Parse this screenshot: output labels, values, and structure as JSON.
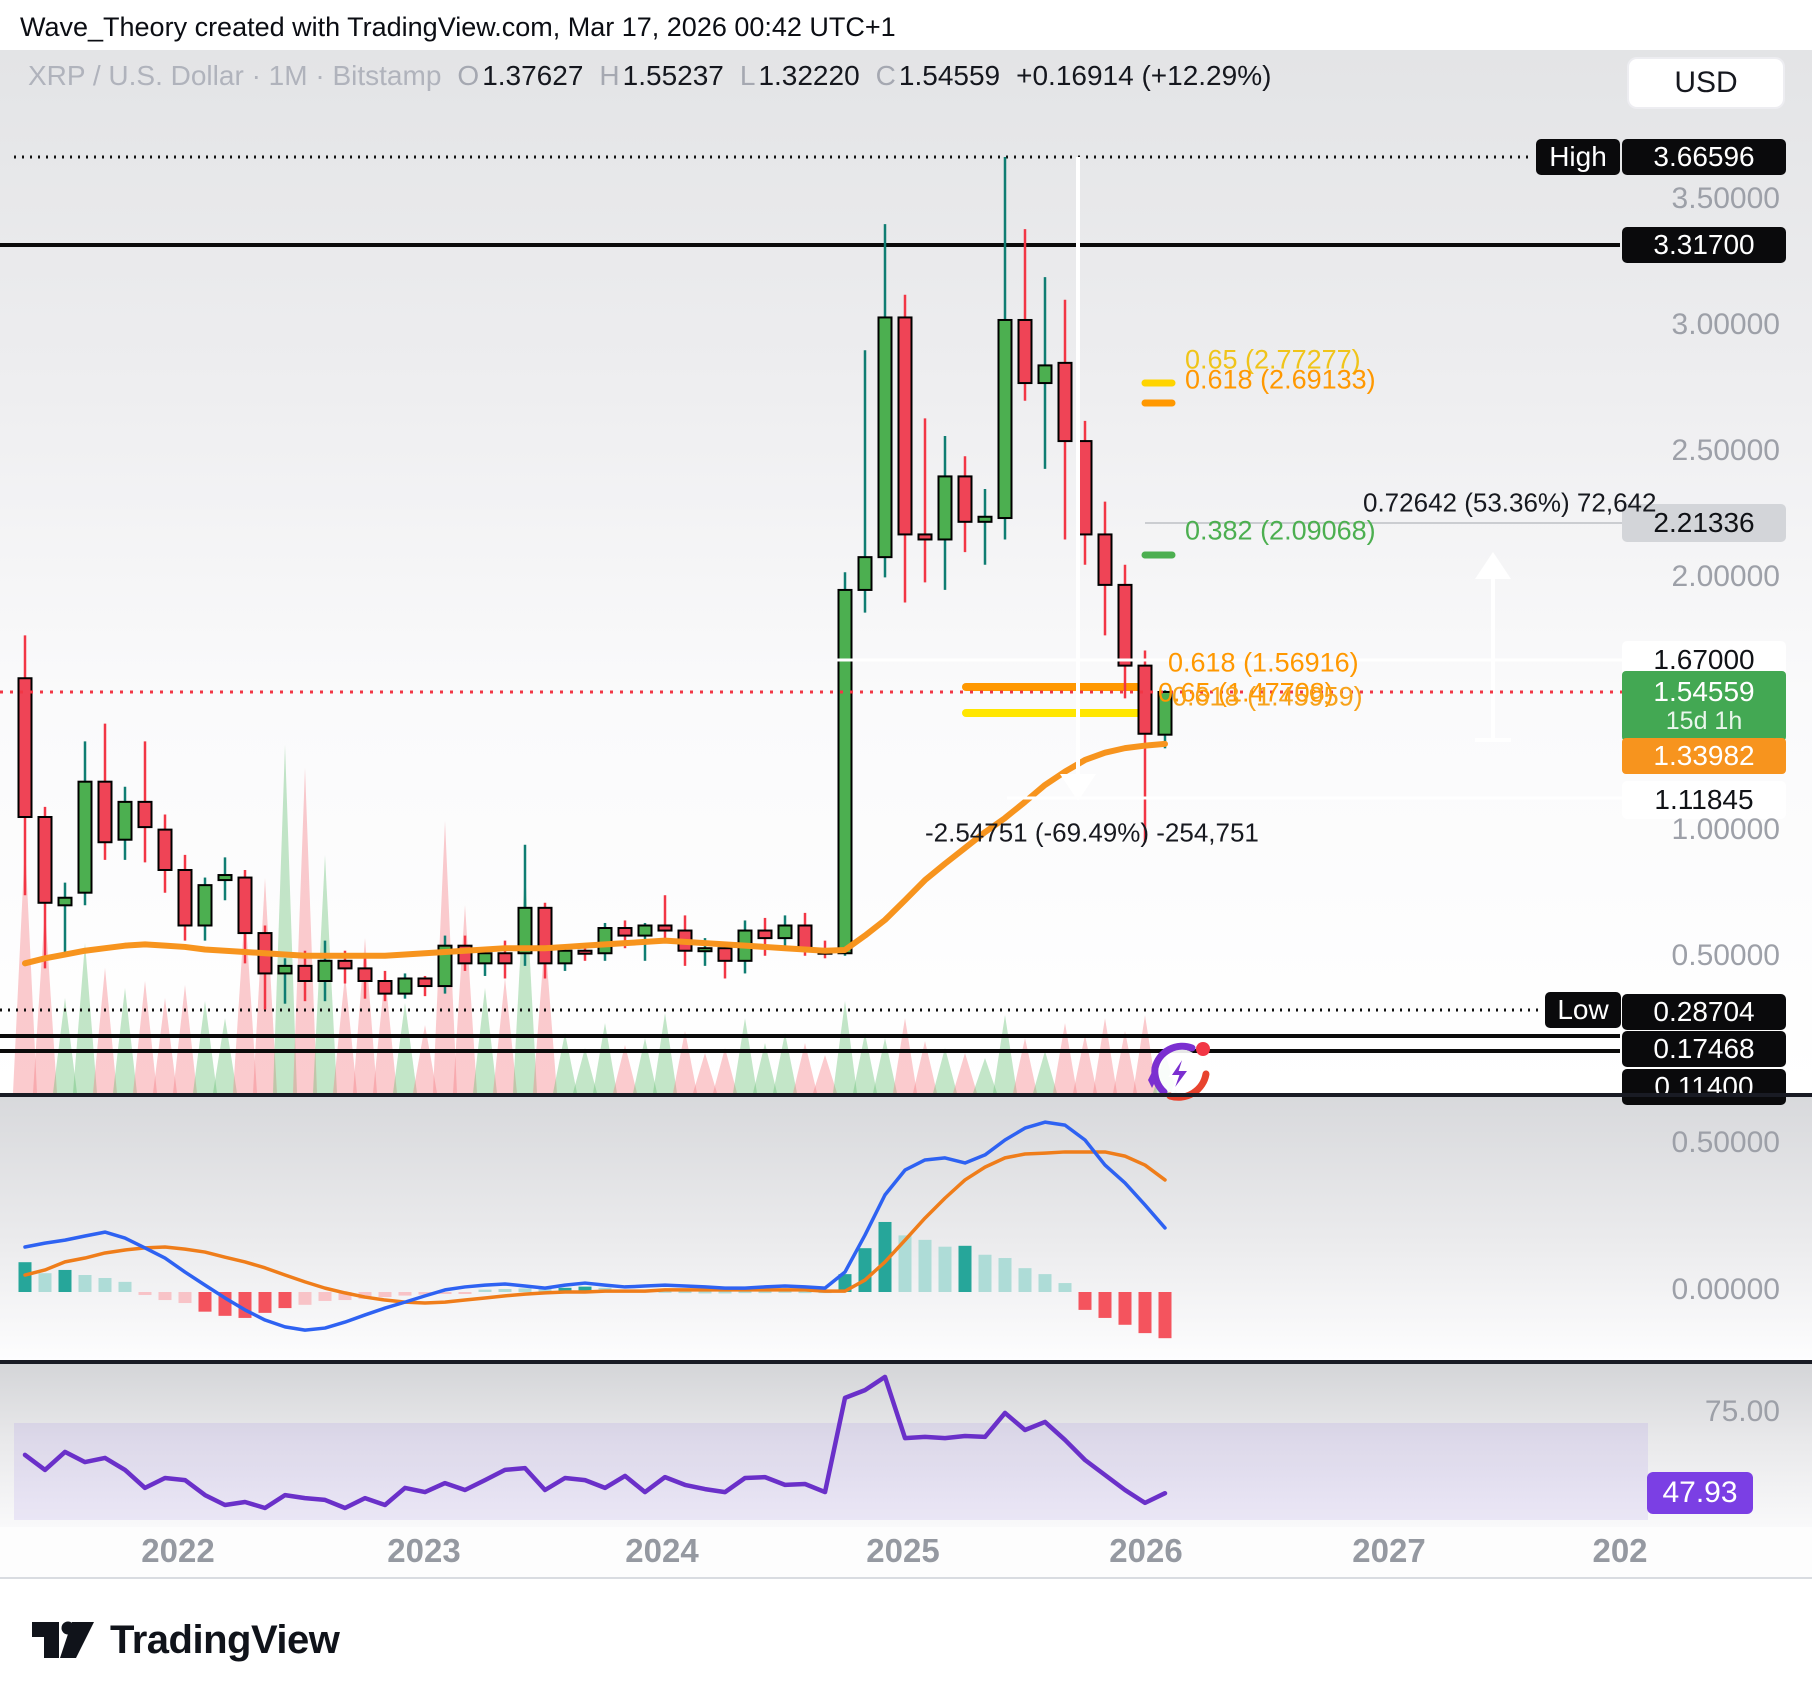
{
  "attribution": "Wave_Theory created with TradingView.com, Mar 17, 2026 00:42 UTC+1",
  "legend": {
    "symbol": "XRP / U.S. Dollar",
    "separator": "·",
    "interval": "1M",
    "exchange": "Bitstamp",
    "open_label": "O",
    "open": "1.37627",
    "high_label": "H",
    "high": "1.55237",
    "low_label": "L",
    "low": "1.32220",
    "close_label": "C",
    "close": "1.54559",
    "change": "+0.16914 (+12.29%)"
  },
  "price_axis": {
    "currency": "USD",
    "gray_labels": [
      "3.50000",
      "3.00000",
      "2.50000",
      "2.00000",
      "1.00000",
      "0.50000"
    ],
    "high_label": "High",
    "high_value": "3.66596",
    "level_33170": "3.31700",
    "level_221336": "2.21336",
    "level_167000": "1.67000",
    "last_price": "1.54559",
    "countdown": "15d 1h",
    "ma_value": "1.33982",
    "level_111845": "1.11845",
    "low_label": "Low",
    "low_value": "0.28704",
    "level_017468": "0.17468",
    "level_011400": "0.11400"
  },
  "macd_axis": {
    "upper": "0.50000",
    "zero": "0.00000"
  },
  "rsi_axis": {
    "upper": "75.00",
    "current": "47.93"
  },
  "time_axis": {
    "labels": [
      "2022",
      "2023",
      "2024",
      "2025",
      "2026",
      "2027",
      "202"
    ]
  },
  "annotations": {
    "fib_upper": [
      {
        "text": "0.65 (2.77277)",
        "color": "#f0c419"
      },
      {
        "text": "0.618 (2.69133)",
        "color": "#ff9800"
      },
      {
        "text": "0.382 (2.09068)",
        "color": "#4caf50"
      }
    ],
    "fib_lower": [
      {
        "text": "0.618 (1.56916)"
      },
      {
        "text": "0.65 (1.47708)"
      },
      {
        "text": "0.618 (1.45959)"
      }
    ],
    "measure_up": "0.72642 (53.36%) 72,642",
    "measure_down": "-2.54751 (-69.49%) -254,751"
  },
  "footer": {
    "brand": "TradingView"
  },
  "colors": {
    "candle_up": "#4caf50",
    "candle_down": "#ef4456",
    "wick_up": "#0f7d72",
    "wick_down": "#f23645",
    "ma": "#f7941e",
    "macd_line": "#2e62f2",
    "signal_line": "#ef7d1a",
    "rsi_line": "#6a30c9",
    "hist_up_dark": "#26a69a",
    "hist_up_light": "#aedcd7",
    "hist_down_dark": "#f4545e",
    "hist_down_light": "#f8c3c7",
    "vol_up": "rgba(96,190,110,0.38)",
    "vol_down": "rgba(244,119,126,0.38)",
    "level_red": "#f23645",
    "fib_yellow": "#ffd400",
    "fib_orange": "#ff9800",
    "fib_green": "#4caf50",
    "drawing_white": "#ffffff",
    "measure_gray": "#cbcdd1"
  },
  "chart_data": {
    "type": "candlestick",
    "title": "XRP / U.S. Dollar · 1M · Bitstamp",
    "xlabel": "",
    "ylabel": "USD",
    "x_tick_labels": [
      "2022",
      "2023",
      "2024",
      "2025",
      "2026",
      "2027",
      "202"
    ],
    "price_range_visible": {
      "top": 3.72,
      "bottom": -0.05
    },
    "price_gridlines": [
      3.5,
      3.0,
      2.5,
      2.0,
      1.0,
      0.5
    ],
    "marked_levels": {
      "high": 3.66596,
      "black_line": 3.317,
      "range_top": 2.21336,
      "white_upper": 1.67,
      "last": 1.54559,
      "ma": 1.33982,
      "white_lower": 1.11845,
      "low": 0.28704,
      "black_low_1": 0.17468,
      "black_low_2": 0.114
    },
    "first_month": "2021-06",
    "last_month": "2026-03",
    "candles": [
      [
        1.6,
        1.77,
        0.74,
        1.05
      ],
      [
        1.05,
        1.09,
        0.45,
        0.71
      ],
      [
        0.7,
        0.79,
        0.5,
        0.73
      ],
      [
        0.75,
        1.35,
        0.7,
        1.19
      ],
      [
        1.19,
        1.42,
        0.88,
        0.95
      ],
      [
        0.96,
        1.17,
        0.88,
        1.11
      ],
      [
        1.11,
        1.35,
        0.87,
        1.01
      ],
      [
        1.0,
        1.06,
        0.75,
        0.84
      ],
      [
        0.84,
        0.9,
        0.56,
        0.62
      ],
      [
        0.62,
        0.81,
        0.56,
        0.78
      ],
      [
        0.8,
        0.89,
        0.72,
        0.82
      ],
      [
        0.81,
        0.84,
        0.47,
        0.59
      ],
      [
        0.59,
        0.62,
        0.287,
        0.43
      ],
      [
        0.43,
        0.49,
        0.31,
        0.46
      ],
      [
        0.46,
        0.52,
        0.32,
        0.4
      ],
      [
        0.4,
        0.56,
        0.32,
        0.48
      ],
      [
        0.48,
        0.52,
        0.39,
        0.45
      ],
      [
        0.45,
        0.51,
        0.33,
        0.4
      ],
      [
        0.4,
        0.44,
        0.32,
        0.35
      ],
      [
        0.35,
        0.43,
        0.33,
        0.41
      ],
      [
        0.41,
        0.42,
        0.34,
        0.38
      ],
      [
        0.38,
        0.58,
        0.35,
        0.54
      ],
      [
        0.54,
        0.58,
        0.44,
        0.47
      ],
      [
        0.47,
        0.53,
        0.42,
        0.51
      ],
      [
        0.51,
        0.56,
        0.41,
        0.47
      ],
      [
        0.51,
        0.94,
        0.46,
        0.69
      ],
      [
        0.69,
        0.71,
        0.41,
        0.47
      ],
      [
        0.47,
        0.54,
        0.44,
        0.52
      ],
      [
        0.52,
        0.55,
        0.48,
        0.51
      ],
      [
        0.51,
        0.63,
        0.48,
        0.61
      ],
      [
        0.61,
        0.64,
        0.53,
        0.58
      ],
      [
        0.58,
        0.63,
        0.48,
        0.62
      ],
      [
        0.62,
        0.74,
        0.56,
        0.6
      ],
      [
        0.6,
        0.66,
        0.46,
        0.52
      ],
      [
        0.52,
        0.57,
        0.46,
        0.53
      ],
      [
        0.53,
        0.55,
        0.41,
        0.48
      ],
      [
        0.48,
        0.64,
        0.43,
        0.6
      ],
      [
        0.6,
        0.65,
        0.5,
        0.57
      ],
      [
        0.57,
        0.66,
        0.52,
        0.62
      ],
      [
        0.62,
        0.67,
        0.5,
        0.52
      ],
      [
        0.52,
        0.56,
        0.49,
        0.51
      ],
      [
        0.51,
        2.02,
        0.5,
        1.95
      ],
      [
        1.95,
        2.9,
        1.86,
        2.08
      ],
      [
        2.08,
        3.4,
        2.0,
        3.03
      ],
      [
        3.03,
        3.12,
        1.9,
        2.17
      ],
      [
        2.17,
        2.63,
        1.98,
        2.15
      ],
      [
        2.15,
        2.56,
        1.95,
        2.4
      ],
      [
        2.4,
        2.48,
        2.1,
        2.22
      ],
      [
        2.22,
        2.35,
        2.05,
        2.24
      ],
      [
        2.235,
        3.66596,
        2.15,
        3.02
      ],
      [
        3.02,
        3.38,
        2.7,
        2.77
      ],
      [
        2.77,
        3.19,
        2.43,
        2.84
      ],
      [
        2.85,
        3.1,
        2.15,
        2.54
      ],
      [
        2.54,
        2.62,
        2.05,
        2.17
      ],
      [
        2.17,
        2.3,
        1.77,
        1.97
      ],
      [
        1.97,
        2.05,
        1.52,
        1.65
      ],
      [
        1.65,
        1.71,
        0.95,
        1.38
      ],
      [
        1.37627,
        1.55237,
        1.3222,
        1.54559
      ]
    ],
    "volume_relative": [
      [
        250,
        "r"
      ],
      [
        185,
        "r"
      ],
      [
        95,
        "g"
      ],
      [
        150,
        "g"
      ],
      [
        125,
        "r"
      ],
      [
        105,
        "g"
      ],
      [
        112,
        "r"
      ],
      [
        95,
        "r"
      ],
      [
        108,
        "r"
      ],
      [
        92,
        "g"
      ],
      [
        75,
        "g"
      ],
      [
        185,
        "r"
      ],
      [
        215,
        "r"
      ],
      [
        348,
        "g"
      ],
      [
        325,
        "r"
      ],
      [
        238,
        "g"
      ],
      [
        118,
        "r"
      ],
      [
        155,
        "r"
      ],
      [
        118,
        "r"
      ],
      [
        90,
        "g"
      ],
      [
        68,
        "r"
      ],
      [
        272,
        "r"
      ],
      [
        188,
        "r"
      ],
      [
        105,
        "g"
      ],
      [
        115,
        "r"
      ],
      [
        225,
        "g"
      ],
      [
        155,
        "r"
      ],
      [
        60,
        "g"
      ],
      [
        45,
        "g"
      ],
      [
        70,
        "g"
      ],
      [
        48,
        "r"
      ],
      [
        55,
        "g"
      ],
      [
        80,
        "g"
      ],
      [
        62,
        "r"
      ],
      [
        40,
        "r"
      ],
      [
        45,
        "r"
      ],
      [
        75,
        "g"
      ],
      [
        50,
        "g"
      ],
      [
        60,
        "g"
      ],
      [
        50,
        "r"
      ],
      [
        38,
        "r"
      ],
      [
        92,
        "g"
      ],
      [
        60,
        "g"
      ],
      [
        55,
        "g"
      ],
      [
        75,
        "r"
      ],
      [
        52,
        "r"
      ],
      [
        45,
        "g"
      ],
      [
        40,
        "r"
      ],
      [
        35,
        "g"
      ],
      [
        78,
        "g"
      ],
      [
        55,
        "r"
      ],
      [
        42,
        "g"
      ],
      [
        70,
        "r"
      ],
      [
        58,
        "r"
      ],
      [
        75,
        "r"
      ],
      [
        62,
        "r"
      ],
      [
        78,
        "r"
      ],
      [
        40,
        "g"
      ]
    ],
    "ma_orange": [
      0.47,
      0.49,
      0.505,
      0.52,
      0.53,
      0.54,
      0.545,
      0.54,
      0.535,
      0.525,
      0.52,
      0.515,
      0.51,
      0.505,
      0.5,
      0.5,
      0.5,
      0.5,
      0.5,
      0.505,
      0.51,
      0.515,
      0.52,
      0.525,
      0.53,
      0.53,
      0.53,
      0.535,
      0.54,
      0.545,
      0.55,
      0.555,
      0.56,
      0.555,
      0.55,
      0.545,
      0.54,
      0.535,
      0.53,
      0.525,
      0.52,
      0.523,
      0.58,
      0.642,
      0.72,
      0.8,
      0.865,
      0.927,
      0.99,
      1.046,
      1.11,
      1.177,
      1.23,
      1.276,
      1.305,
      1.323,
      1.333,
      1.33982
    ],
    "macd": {
      "ylim_labels": [
        "0.50000",
        "0.00000"
      ],
      "hist": [
        [
          0.1,
          "d"
        ],
        [
          0.063,
          "l"
        ],
        [
          0.074,
          "d"
        ],
        [
          0.057,
          "l"
        ],
        [
          0.047,
          "l"
        ],
        [
          0.034,
          "l"
        ],
        [
          -0.01,
          "p"
        ],
        [
          -0.027,
          "p"
        ],
        [
          -0.037,
          "p"
        ],
        [
          -0.066,
          "r"
        ],
        [
          -0.08,
          "r"
        ],
        [
          -0.087,
          "r"
        ],
        [
          -0.07,
          "r"
        ],
        [
          -0.054,
          "r"
        ],
        [
          -0.043,
          "p"
        ],
        [
          -0.03,
          "p"
        ],
        [
          -0.027,
          "p"
        ],
        [
          -0.023,
          "p"
        ],
        [
          -0.017,
          "p"
        ],
        [
          -0.012,
          "p"
        ],
        [
          -0.009,
          "p"
        ],
        [
          -0.006,
          "p"
        ],
        [
          -0.004,
          "p"
        ],
        [
          0.008,
          "l"
        ],
        [
          0.01,
          "l"
        ],
        [
          0.012,
          "l"
        ],
        [
          0.01,
          "l"
        ],
        [
          0.014,
          "d"
        ],
        [
          0.018,
          "d"
        ],
        [
          0.014,
          "l"
        ],
        [
          0.008,
          "l"
        ],
        [
          0.006,
          "l"
        ],
        [
          0.004,
          "l"
        ],
        [
          0.003,
          "l"
        ],
        [
          0.002,
          "l"
        ],
        [
          0.002,
          "l"
        ],
        [
          0.003,
          "l"
        ],
        [
          0.003,
          "l"
        ],
        [
          0.004,
          "l"
        ],
        [
          0.003,
          "l"
        ],
        [
          0.003,
          "l"
        ],
        [
          0.06,
          "d"
        ],
        [
          0.147,
          "d"
        ],
        [
          0.235,
          "d"
        ],
        [
          0.19,
          "l"
        ],
        [
          0.175,
          "l"
        ],
        [
          0.152,
          "l"
        ],
        [
          0.155,
          "d"
        ],
        [
          0.125,
          "l"
        ],
        [
          0.114,
          "l"
        ],
        [
          0.08,
          "l"
        ],
        [
          0.06,
          "l"
        ],
        [
          0.03,
          "l"
        ],
        [
          -0.06,
          "r"
        ],
        [
          -0.087,
          "r"
        ],
        [
          -0.11,
          "r"
        ],
        [
          -0.138,
          "r"
        ],
        [
          -0.155,
          "r"
        ]
      ],
      "macd_line": [
        0.151,
        0.164,
        0.174,
        0.188,
        0.201,
        0.181,
        0.148,
        0.114,
        0.067,
        0.023,
        -0.02,
        -0.06,
        -0.094,
        -0.117,
        -0.128,
        -0.121,
        -0.101,
        -0.077,
        -0.054,
        -0.034,
        -0.013,
        0.007,
        0.017,
        0.023,
        0.027,
        0.02,
        0.013,
        0.023,
        0.03,
        0.023,
        0.017,
        0.02,
        0.023,
        0.02,
        0.017,
        0.013,
        0.013,
        0.017,
        0.02,
        0.017,
        0.013,
        0.067,
        0.191,
        0.326,
        0.409,
        0.443,
        0.45,
        0.433,
        0.46,
        0.51,
        0.55,
        0.57,
        0.56,
        0.51,
        0.426,
        0.366,
        0.292,
        0.215
      ],
      "signal_line": [
        0.057,
        0.074,
        0.101,
        0.114,
        0.131,
        0.141,
        0.148,
        0.151,
        0.144,
        0.134,
        0.117,
        0.101,
        0.081,
        0.057,
        0.034,
        0.013,
        -0.003,
        -0.017,
        -0.027,
        -0.034,
        -0.037,
        -0.034,
        -0.027,
        -0.02,
        -0.013,
        -0.007,
        -0.003,
        0.0,
        0.0,
        0.003,
        0.003,
        0.003,
        0.007,
        0.007,
        0.007,
        0.007,
        0.007,
        0.007,
        0.007,
        0.007,
        0.003,
        0.003,
        0.04,
        0.101,
        0.174,
        0.248,
        0.315,
        0.376,
        0.419,
        0.45,
        0.463,
        0.466,
        0.47,
        0.47,
        0.47,
        0.456,
        0.426,
        0.376
      ]
    },
    "rsi": {
      "upper_label": 75.0,
      "current": 47.93,
      "values": [
        60.7,
        55.7,
        61.7,
        58.3,
        59.7,
        55.7,
        49.7,
        53.0,
        52.3,
        47.3,
        44.0,
        45.0,
        43.0,
        47.3,
        46.3,
        45.7,
        43.0,
        46.3,
        44.0,
        49.7,
        48.3,
        51.3,
        49.0,
        52.3,
        55.7,
        56.3,
        49.0,
        53.0,
        52.3,
        49.7,
        53.7,
        48.3,
        53.3,
        50.7,
        49.3,
        48.3,
        53.0,
        53.3,
        50.7,
        51.0,
        48.3,
        79.7,
        82.3,
        86.7,
        66.3,
        66.7,
        66.3,
        67.0,
        66.7,
        74.7,
        69.0,
        71.7,
        65.7,
        59.0,
        54.0,
        49.0,
        44.7,
        47.93
      ]
    }
  }
}
